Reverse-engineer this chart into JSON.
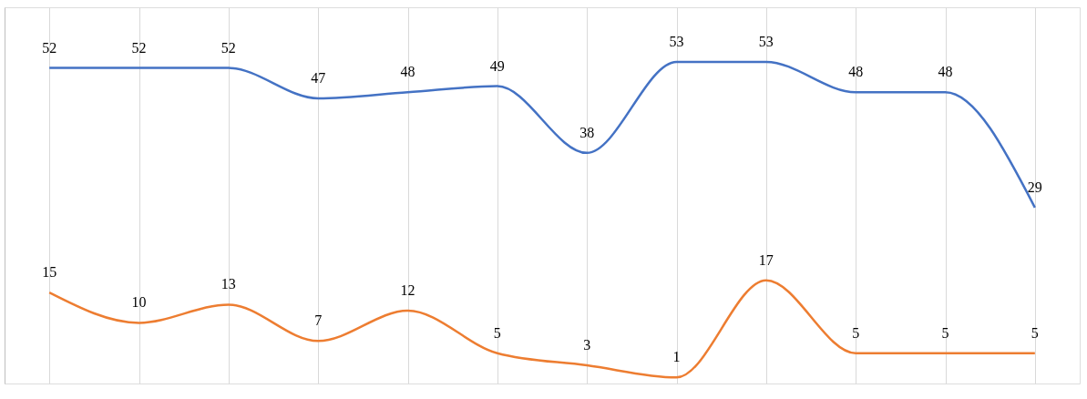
{
  "chart_data": {
    "type": "line",
    "categories": [
      null,
      null,
      null,
      null,
      null,
      null,
      null,
      null,
      null,
      null,
      null,
      null
    ],
    "series": [
      {
        "color": "#4472c4",
        "values": [
          52,
          52,
          52,
          47,
          48,
          49,
          38,
          53,
          53,
          48,
          48,
          29
        ]
      },
      {
        "color": "#ed7d31",
        "values": [
          15,
          10,
          13,
          7,
          12,
          5,
          3,
          1,
          17,
          5,
          5,
          5
        ]
      }
    ],
    "ylim": [
      0,
      62
    ],
    "data_labels": true,
    "grid": "x",
    "legend": false,
    "marker": "none",
    "line_style": "solid"
  }
}
